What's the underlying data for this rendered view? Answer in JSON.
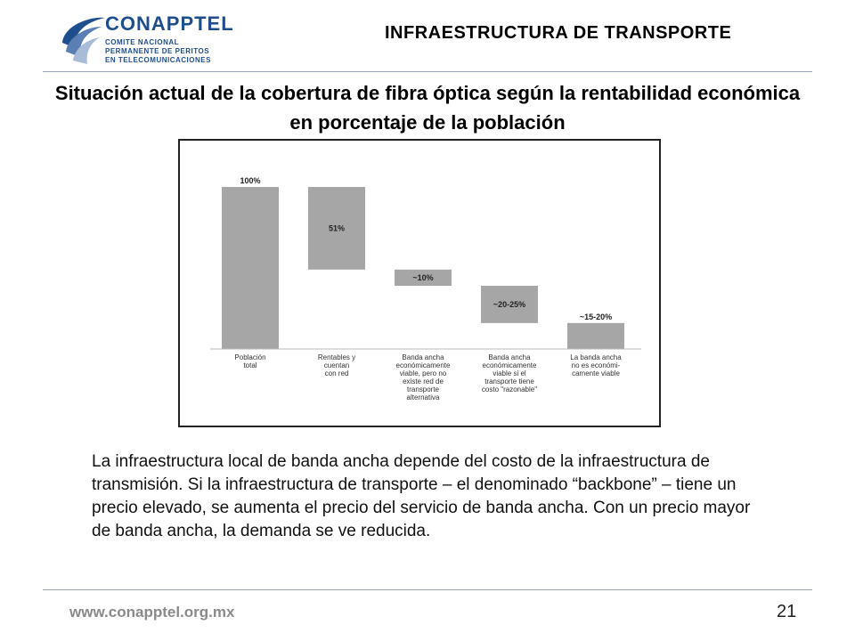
{
  "header": {
    "logo": {
      "name": "CONAPPTEL",
      "line1": "COMITE NACIONAL",
      "line2": "PERMANENTE DE PERITOS",
      "line3": "EN TELECOMUNICACIONES"
    },
    "section_title": "INFRAESTRUCTURA DE TRANSPORTE",
    "colors": {
      "brand": "#1f4e8c",
      "rule": "#9aa6b8"
    }
  },
  "slide": {
    "title": "Situación actual de la cobertura de fibra óptica según la rentabilidad económica en porcentaje de la población",
    "body": "La infraestructura local de banda ancha depende del costo de la infraestructura de transmisión. Si la infraestructura de transporte – el denominado “backbone” – tiene un precio elevado, se aumenta el precio del servicio de banda ancha. Con un precio mayor de banda ancha, la demanda se ve reducida."
  },
  "footer": {
    "url": "www.conapptel.org.mx",
    "page": "21"
  },
  "chart_data": {
    "type": "bar",
    "subtype": "waterfall",
    "categories": [
      [
        "Población",
        "total"
      ],
      [
        "Rentables y",
        "cuentan",
        "con red"
      ],
      [
        "Banda ancha",
        "económicamente",
        "viable, pero no",
        "existe red de",
        "transporte",
        "alternativa"
      ],
      [
        "Banda ancha",
        "económicamente",
        "viable si el",
        "transporte tiene",
        "costo \"razonable\""
      ],
      [
        "La banda ancha",
        "no es económi-",
        "camente viable"
      ]
    ],
    "bars": [
      {
        "base": 0,
        "top": 100,
        "label": "100%",
        "label_position": "above"
      },
      {
        "base": 49,
        "top": 100,
        "label": "51%",
        "label_position": "inside"
      },
      {
        "base": 39,
        "top": 49,
        "label": "~10%",
        "label_position": "inside"
      },
      {
        "base": 16,
        "top": 39,
        "label": "~20-25%",
        "label_position": "inside"
      },
      {
        "base": 0,
        "top": 16,
        "label": "~15-20%",
        "label_position": "above"
      }
    ],
    "ylim": [
      0,
      100
    ],
    "grid": false,
    "bar_color": "#a6a6a6"
  }
}
